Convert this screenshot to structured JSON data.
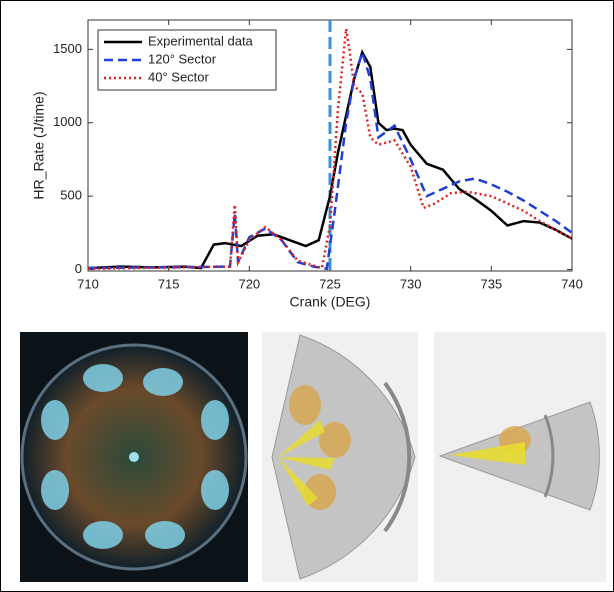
{
  "chart_data": {
    "type": "line",
    "xlabel": "Crank (DEG)",
    "ylabel": "HR_Rate (J/time)",
    "xlim": [
      710,
      740
    ],
    "xticks": [
      710,
      715,
      720,
      725,
      730,
      735,
      740
    ],
    "ylim": [
      -10,
      1700
    ],
    "yticks": [
      0,
      500,
      1000,
      1500
    ],
    "grid": false,
    "legend": "upper left",
    "vline": {
      "x": 725,
      "color": "#3d8fd6"
    },
    "series": [
      {
        "name": "Experimental data",
        "color": "#000000",
        "dash": "solid",
        "x": [
          710,
          712,
          714,
          716,
          717,
          717.8,
          718.5,
          719.5,
          720.5,
          721.5,
          722.5,
          723.5,
          724.3,
          725,
          725.5,
          726,
          726.5,
          727,
          727.5,
          728,
          728.5,
          729,
          729.5,
          730,
          731,
          732,
          733,
          734,
          735,
          736,
          737,
          738,
          739,
          740
        ],
        "values": [
          10,
          20,
          15,
          20,
          10,
          170,
          180,
          160,
          230,
          240,
          200,
          160,
          200,
          500,
          800,
          1050,
          1300,
          1480,
          1380,
          1000,
          950,
          960,
          950,
          850,
          720,
          680,
          550,
          480,
          400,
          300,
          330,
          320,
          270,
          210
        ]
      },
      {
        "name": "120° Sector",
        "color": "#1f3fd6",
        "dash": "dashed",
        "x": [
          710,
          718.8,
          719.1,
          719.3,
          720,
          721,
          722,
          723,
          724,
          724.8,
          725.3,
          726,
          726.5,
          727,
          727.5,
          728,
          729,
          730,
          731,
          732,
          733,
          734,
          735,
          736,
          737,
          738,
          739,
          740
        ],
        "values": [
          10,
          20,
          380,
          50,
          220,
          280,
          200,
          50,
          20,
          5,
          400,
          1000,
          1300,
          1480,
          1300,
          900,
          980,
          750,
          500,
          550,
          600,
          620,
          580,
          530,
          470,
          400,
          330,
          250
        ]
      },
      {
        "name": "40° Sector",
        "color": "#e02020",
        "dash": "dotted",
        "x": [
          710,
          718.8,
          719.1,
          719.3,
          720,
          721,
          722,
          723,
          724.5,
          725,
          725.5,
          726,
          726.2,
          726.5,
          727,
          727.5,
          728,
          729,
          730,
          730.8,
          731.5,
          732.5,
          733.5,
          735,
          736,
          737,
          738,
          739,
          740
        ],
        "values": [
          5,
          20,
          440,
          50,
          200,
          290,
          200,
          60,
          10,
          300,
          1100,
          1640,
          1500,
          1250,
          1200,
          900,
          850,
          880,
          700,
          420,
          450,
          520,
          530,
          500,
          450,
          400,
          330,
          270,
          210
        ]
      }
    ]
  }
}
